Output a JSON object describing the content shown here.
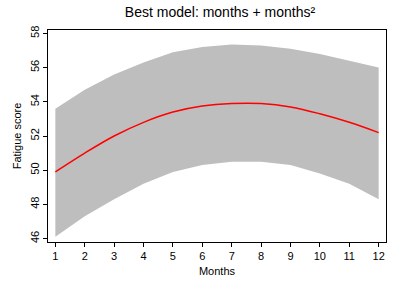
{
  "chart_data": {
    "type": "line",
    "title": "Best model: months + months²",
    "x_label": "Months",
    "y_label": "Fatigue score",
    "x": [
      1,
      2,
      3,
      4,
      5,
      6,
      7,
      8,
      9,
      10,
      11,
      12
    ],
    "series": [
      {
        "type": "band",
        "color": "#bebebe",
        "lower": [
          46.1,
          47.3,
          48.3,
          49.2,
          49.9,
          50.3,
          50.5,
          50.5,
          50.3,
          49.8,
          49.2,
          48.3
        ],
        "upper": [
          53.6,
          54.7,
          55.6,
          56.3,
          56.9,
          57.2,
          57.35,
          57.3,
          57.1,
          56.8,
          56.4,
          56.0
        ]
      },
      {
        "type": "line",
        "color": "#ff0000",
        "values": [
          49.9,
          51.0,
          52.0,
          52.8,
          53.4,
          53.75,
          53.9,
          53.9,
          53.7,
          53.3,
          52.8,
          52.2
        ]
      }
    ],
    "xlim": [
      0.75,
      12.25
    ],
    "xticks": [
      1,
      2,
      3,
      4,
      5,
      6,
      7,
      8,
      9,
      10,
      11,
      12
    ],
    "ylim": [
      45.8,
      58.2
    ],
    "yticks": [
      46,
      48,
      50,
      52,
      54,
      56,
      58
    ],
    "grid": false
  }
}
